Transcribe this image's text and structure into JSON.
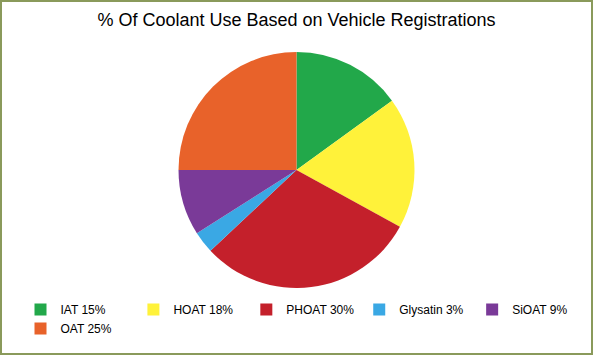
{
  "chart_data": {
    "type": "pie",
    "title": "% Of Coolant Use Based on Vehicle Registrations",
    "categories": [
      "IAT 15%",
      "HOAT 18%",
      "PHOAT 30%",
      "Glysatin 3%",
      "SiOAT 9%",
      "OAT 25%"
    ],
    "values": [
      15,
      18,
      30,
      3,
      9,
      25
    ],
    "colors": [
      "#22a84a",
      "#fff23a",
      "#c4202b",
      "#3aa8e4",
      "#7a3a98",
      "#e8622a"
    ],
    "legend": "bottom",
    "data_labels": false
  }
}
